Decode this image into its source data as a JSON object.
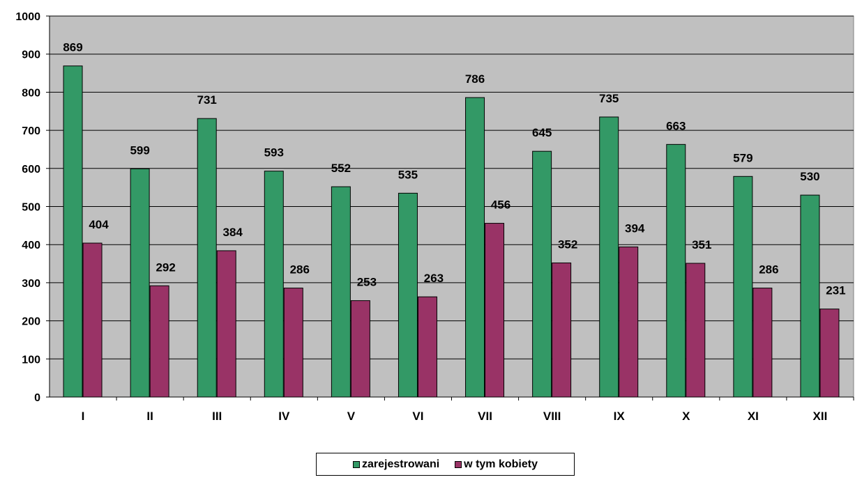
{
  "chart_data": {
    "type": "bar",
    "title": "",
    "xlabel": "",
    "ylabel": "",
    "categories": [
      "I",
      "II",
      "III",
      "IV",
      "V",
      "VI",
      "VII",
      "VIII",
      "IX",
      "X",
      "XI",
      "XII"
    ],
    "series": [
      {
        "name": "zarejestrowani",
        "color": "#339966",
        "values": [
          869,
          599,
          731,
          593,
          552,
          535,
          786,
          645,
          735,
          663,
          579,
          530
        ]
      },
      {
        "name": "w tym kobiety",
        "color": "#993366",
        "values": [
          404,
          292,
          384,
          286,
          253,
          263,
          456,
          352,
          394,
          351,
          286,
          231
        ]
      }
    ],
    "ylim": [
      0,
      1000
    ],
    "yticks": [
      0,
      100,
      200,
      300,
      400,
      500,
      600,
      700,
      800,
      900,
      1000
    ],
    "grid": true,
    "plot_background": "#c0c0c0",
    "legend_position": "bottom"
  }
}
